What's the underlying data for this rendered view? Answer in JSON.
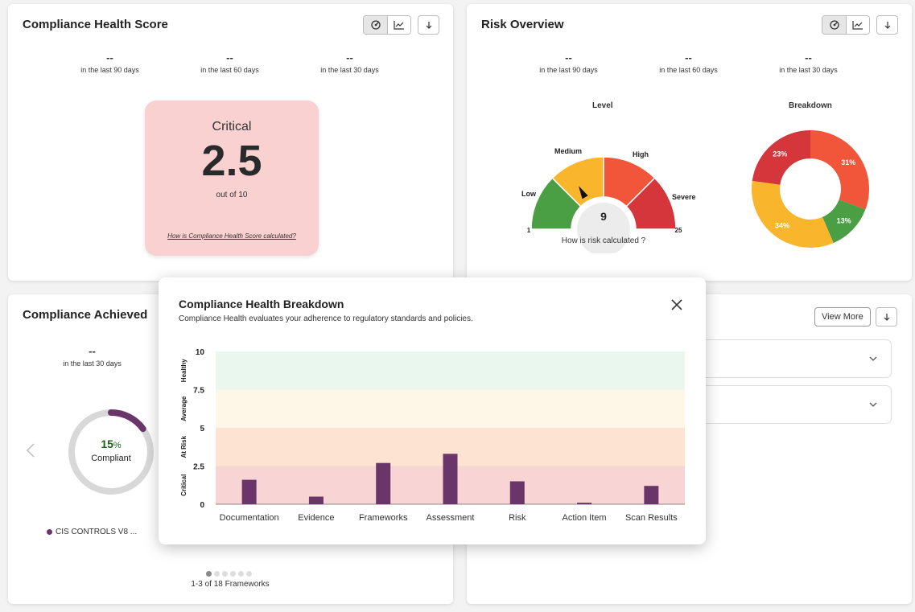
{
  "health_card": {
    "title": "Compliance Health Score",
    "stats": [
      {
        "value": "--",
        "label": "in the last 90 days"
      },
      {
        "value": "--",
        "label": "in the last 60 days"
      },
      {
        "value": "--",
        "label": "in the last 30 days"
      }
    ],
    "status": "Critical",
    "score": "2.5",
    "out_of": "out of 10",
    "link": "How is Compliance Health Score calculated?",
    "colors": {
      "box": "#f9d1d1"
    }
  },
  "risk_card": {
    "title": "Risk Overview",
    "stats": [
      {
        "value": "--",
        "label": "in the last 90 days"
      },
      {
        "value": "--",
        "label": "in the last 60 days"
      },
      {
        "value": "--",
        "label": "in the last 30 days"
      }
    ],
    "level_label": "Level",
    "breakdown_label": "Breakdown",
    "gauge": {
      "min": 1,
      "max": 25,
      "value": 9,
      "value_text": "9",
      "min_text": "1",
      "max_text": "25",
      "bands": [
        {
          "name": "Low",
          "color": "#4a9e44"
        },
        {
          "name": "Medium",
          "color": "#f9b62c"
        },
        {
          "name": "High",
          "color": "#f2563a"
        },
        {
          "name": "Severe",
          "color": "#d4363c"
        }
      ],
      "link": "How is risk calculated ?"
    },
    "donut": [
      {
        "pct": 31,
        "label": "31%",
        "color": "#f2563a"
      },
      {
        "pct": 13,
        "label": "13%",
        "color": "#4a9e44"
      },
      {
        "pct": 34,
        "label": "34%",
        "color": "#f9b62c"
      },
      {
        "pct": 23,
        "label": "23%",
        "color": "#d4363c"
      }
    ]
  },
  "achieved_card": {
    "title": "Compliance Achieved",
    "stat": {
      "value": "--",
      "label": "in the last 30 days"
    },
    "ring": {
      "pct_number": "15",
      "pct_sign": "%",
      "label": "Compliant",
      "value": 15,
      "color": "#6a3568"
    },
    "legend": "CIS CONTROLS V8 ...",
    "pager": "1-3 of 18 Frameworks"
  },
  "right_card": {
    "view_more": "View More"
  },
  "modal": {
    "title": "Compliance Health Breakdown",
    "subtitle": "Compliance Health evaluates your adherence to regulatory standards and policies.",
    "chart_data": {
      "type": "bar",
      "categories": [
        "Documentation",
        "Evidence",
        "Frameworks",
        "Assessment",
        "Risk",
        "Action Item",
        "Scan Results"
      ],
      "values": [
        1.6,
        0.5,
        2.7,
        3.3,
        1.5,
        0.1,
        1.2
      ],
      "ylim": [
        0,
        10
      ],
      "yticks": [
        "0",
        "2.5",
        "5",
        "7.5",
        "10"
      ],
      "bands": [
        {
          "name": "Critical",
          "from": 0,
          "to": 2.5,
          "color": "#f9d4d4"
        },
        {
          "name": "At Risk",
          "from": 2.5,
          "to": 5,
          "color": "#fde4d2"
        },
        {
          "name": "Average",
          "from": 5,
          "to": 7.5,
          "color": "#fef6e6"
        },
        {
          "name": "Healthy",
          "from": 7.5,
          "to": 10,
          "color": "#e9f7ee"
        }
      ],
      "bar_color": "#6a3568"
    }
  }
}
